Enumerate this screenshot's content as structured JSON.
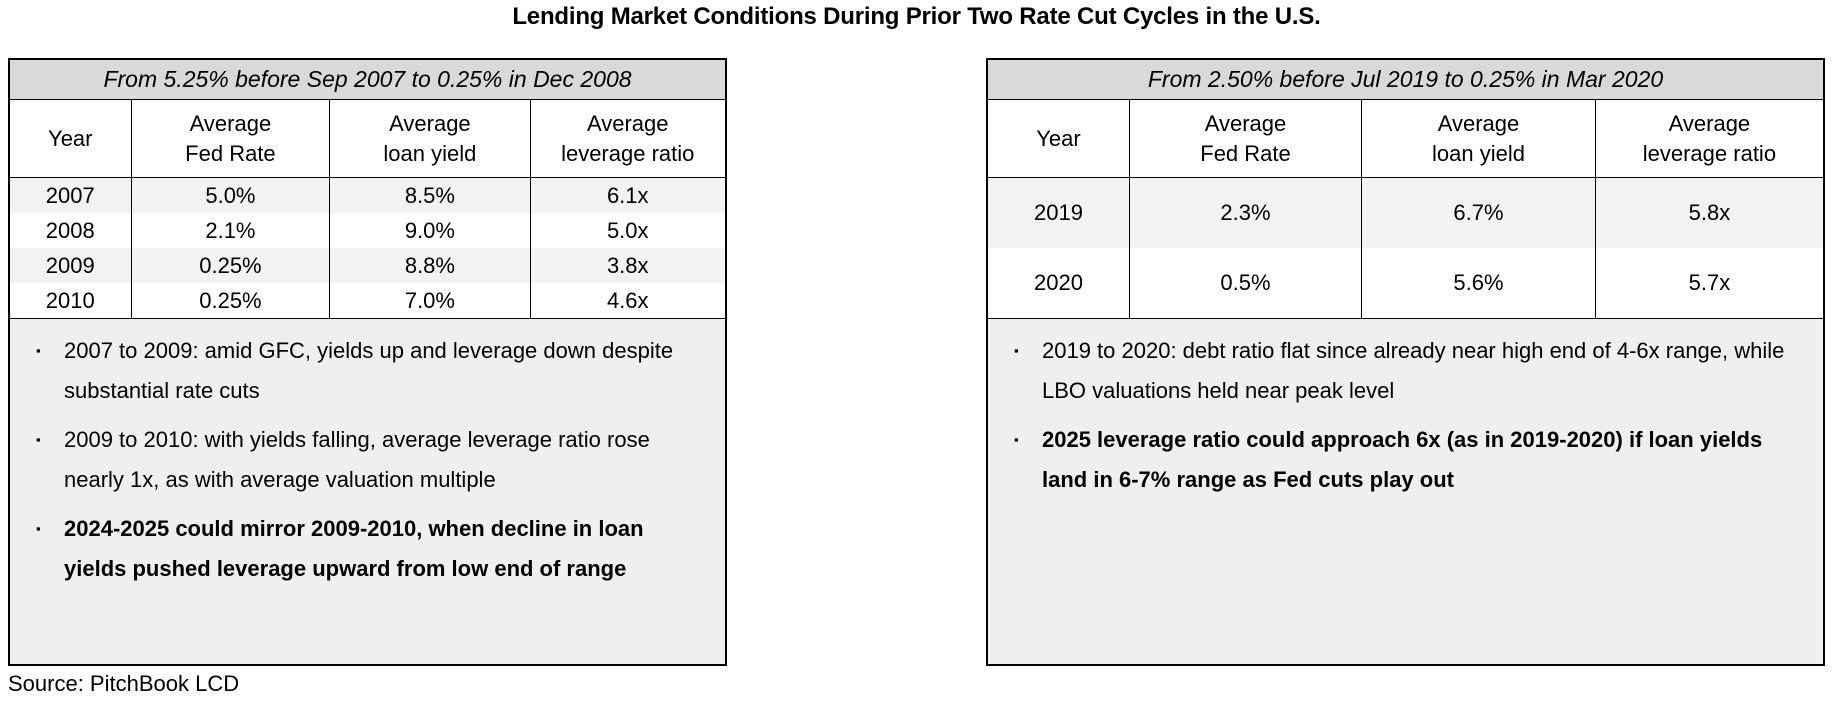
{
  "title": "Lending Market Conditions During Prior Two Rate Cut Cycles in the U.S.",
  "source_label": "Source: PitchBook LCD",
  "colors": {
    "cycle_header_bg": "#d9d9d9",
    "row_shade": "#f2f2f2",
    "notes_bg": "#efefef",
    "border": "#000000"
  },
  "display": {
    "bullet_marker": "▪",
    "columns_multiline": [
      "Year",
      "Average\nFed Rate",
      "Average\nloan yield",
      "Average\nleverage ratio"
    ]
  },
  "chart_data": [
    {
      "type": "table",
      "title": "From 5.25% before Sep 2007 to 0.25% in Dec 2008",
      "columns": [
        "Year",
        "Average Fed Rate",
        "Average loan yield",
        "Average leverage ratio"
      ],
      "rows": [
        [
          "2007",
          "5.0%",
          "8.5%",
          "6.1x"
        ],
        [
          "2008",
          "2.1%",
          "9.0%",
          "5.0x"
        ],
        [
          "2009",
          "0.25%",
          "8.8%",
          "3.8x"
        ],
        [
          "2010",
          "0.25%",
          "7.0%",
          "4.6x"
        ]
      ],
      "notes": [
        {
          "text": "2007 to 2009: amid GFC, yields up and leverage down despite substantial rate cuts",
          "bold": false
        },
        {
          "text": "2009 to 2010: with yields falling, average leverage ratio rose nearly 1x, as with average valuation multiple",
          "bold": false
        },
        {
          "text": "2024-2025 could mirror 2009-2010, when decline in loan yields pushed leverage upward from low end of range",
          "bold": true
        }
      ]
    },
    {
      "type": "table",
      "title": "From 2.50% before Jul 2019 to 0.25% in Mar 2020",
      "columns": [
        "Year",
        "Average Fed Rate",
        "Average loan yield",
        "Average leverage ratio"
      ],
      "rows": [
        [
          "2019",
          "2.3%",
          "6.7%",
          "5.8x"
        ],
        [
          "2020",
          "0.5%",
          "5.6%",
          "5.7x"
        ]
      ],
      "notes": [
        {
          "text": "2019 to 2020: debt ratio flat since already near high end of 4-6x range, while LBO valuations held near peak level",
          "bold": false
        },
        {
          "text": "2025 leverage ratio could approach 6x (as in 2019-2020) if loan yields land in 6-7% range as Fed cuts play out",
          "bold": true
        }
      ]
    }
  ]
}
